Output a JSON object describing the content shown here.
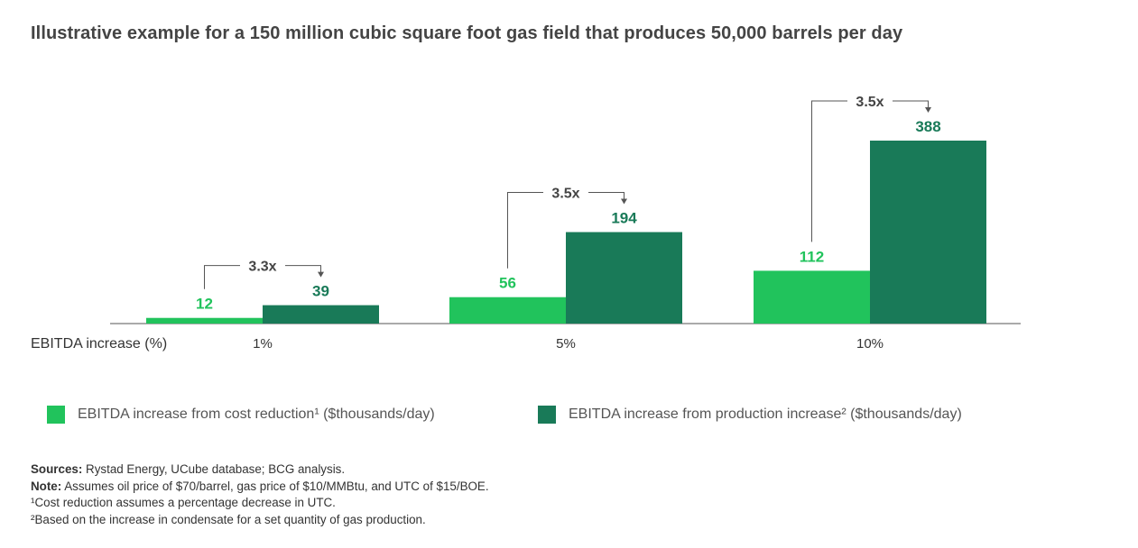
{
  "title": "Illustrative example for a 150 million cubic square foot gas field that produces 50,000 barrels per day",
  "colors": {
    "cost": "#21c35c",
    "production": "#197a58",
    "axis": "#555555",
    "text": "#333333"
  },
  "chart_data": {
    "type": "bar",
    "xlabel": "EBITDA increase (%)",
    "categories": [
      "1%",
      "5%",
      "10%"
    ],
    "series": [
      {
        "name": "EBITDA increase from cost reduction¹ ($thousands/day)",
        "values": [
          12,
          56,
          112
        ]
      },
      {
        "name": "EBITDA increase from production increase² ($thousands/day)",
        "values": [
          39,
          194,
          388
        ]
      }
    ],
    "ratios": [
      "3.3x",
      "3.5x",
      "3.5x"
    ],
    "ylim": [
      0,
      388
    ],
    "grid": false,
    "legend": "bottom"
  },
  "legend": [
    {
      "label": "EBITDA increase from cost reduction¹ ($thousands/day)"
    },
    {
      "label": "EBITDA increase from production increase² ($thousands/day)"
    }
  ],
  "notes": {
    "sources_label": "Sources:",
    "sources_text": " Rystad Energy, UCube database; BCG analysis.",
    "note_label": "Note:",
    "note_text": " Assumes oil price of $70/barrel, gas price of $10/MMBtu, and UTC of $15/BOE.",
    "footnote_1": "¹Cost reduction assumes a percentage decrease in UTC.",
    "footnote_2": "²Based on the increase in condensate for a set quantity of gas production."
  }
}
